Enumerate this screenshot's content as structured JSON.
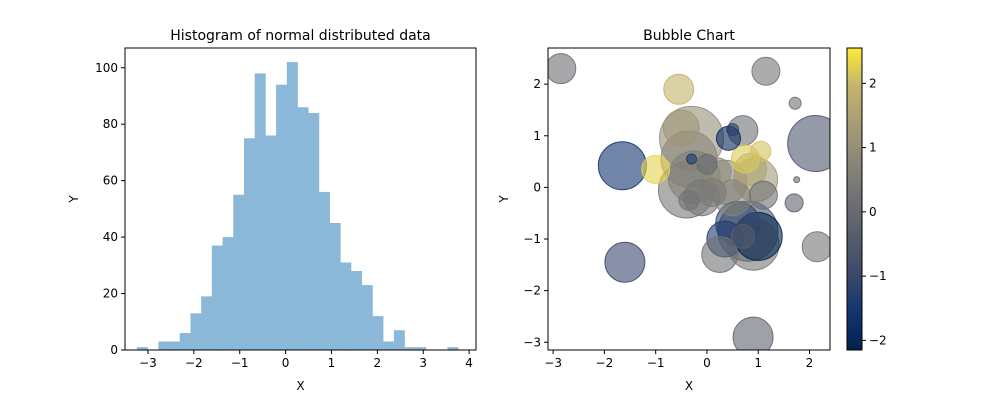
{
  "chart_data": [
    {
      "type": "histogram",
      "title": "Histogram of normal distributed data",
      "xlabel": "X",
      "ylabel": "Y",
      "xlim": [
        -3.5,
        4.15
      ],
      "ylim": [
        0,
        107
      ],
      "xticks": [
        -3,
        -2,
        -1,
        0,
        1,
        2,
        3,
        4
      ],
      "yticks": [
        0,
        20,
        40,
        60,
        80,
        100
      ],
      "bar_color": "#8bb8d8",
      "bin_width": 0.2333,
      "bins": [
        {
          "x0": -3.24,
          "value": 1
        },
        {
          "x0": -3.007,
          "value": 0
        },
        {
          "x0": -2.773,
          "value": 3
        },
        {
          "x0": -2.54,
          "value": 3
        },
        {
          "x0": -2.307,
          "value": 6
        },
        {
          "x0": -2.073,
          "value": 13
        },
        {
          "x0": -1.84,
          "value": 19
        },
        {
          "x0": -1.607,
          "value": 37
        },
        {
          "x0": -1.373,
          "value": 40
        },
        {
          "x0": -1.14,
          "value": 55
        },
        {
          "x0": -0.907,
          "value": 75
        },
        {
          "x0": -0.673,
          "value": 98
        },
        {
          "x0": -0.44,
          "value": 76
        },
        {
          "x0": -0.207,
          "value": 94
        },
        {
          "x0": 0.027,
          "value": 102
        },
        {
          "x0": 0.26,
          "value": 86
        },
        {
          "x0": 0.493,
          "value": 84
        },
        {
          "x0": 0.727,
          "value": 56
        },
        {
          "x0": 0.96,
          "value": 45
        },
        {
          "x0": 1.193,
          "value": 31
        },
        {
          "x0": 1.427,
          "value": 28
        },
        {
          "x0": 1.66,
          "value": 23
        },
        {
          "x0": 1.893,
          "value": 12
        },
        {
          "x0": 2.127,
          "value": 3
        },
        {
          "x0": 2.36,
          "value": 7
        },
        {
          "x0": 2.593,
          "value": 1
        },
        {
          "x0": 2.827,
          "value": 1
        },
        {
          "x0": 3.06,
          "value": 0
        },
        {
          "x0": 3.293,
          "value": 0
        },
        {
          "x0": 3.527,
          "value": 1
        }
      ]
    },
    {
      "type": "scatter",
      "title": "Bubble Chart",
      "xlabel": "X",
      "ylabel": "Y",
      "xlim": [
        -3.1,
        2.4
      ],
      "ylim": [
        -3.15,
        2.7
      ],
      "xticks": [
        -3,
        -2,
        -1,
        0,
        1,
        2
      ],
      "yticks": [
        -3,
        -2,
        -1,
        0,
        1,
        2
      ],
      "colormap": "cividis",
      "colorbar": {
        "min": -2.15,
        "max": 2.55,
        "ticks": [
          -2,
          -1,
          0,
          1,
          2
        ]
      },
      "points": [
        {
          "x": -2.85,
          "y": 2.3,
          "r": 15,
          "c": 0.1
        },
        {
          "x": -0.55,
          "y": 1.9,
          "r": 15,
          "c": 1.9
        },
        {
          "x": 1.15,
          "y": 2.25,
          "r": 14,
          "c": 0.3
        },
        {
          "x": 1.72,
          "y": 1.63,
          "r": 6,
          "c": 0.2
        },
        {
          "x": 2.12,
          "y": 0.85,
          "r": 28,
          "c": -0.6
        },
        {
          "x": -1.65,
          "y": 0.42,
          "r": 24,
          "c": -1.6
        },
        {
          "x": -1.0,
          "y": 0.35,
          "r": 14,
          "c": 2.3
        },
        {
          "x": -0.5,
          "y": 1.15,
          "r": 18,
          "c": 1.2
        },
        {
          "x": -0.3,
          "y": 0.95,
          "r": 32,
          "c": 1.0
        },
        {
          "x": -0.35,
          "y": 0.55,
          "r": 28,
          "c": 0.8
        },
        {
          "x": -0.25,
          "y": 0.2,
          "r": 26,
          "c": 0.6
        },
        {
          "x": -0.4,
          "y": -0.05,
          "r": 28,
          "c": 0.4
        },
        {
          "x": -0.1,
          "y": -0.2,
          "r": 18,
          "c": 0.3
        },
        {
          "x": -0.35,
          "y": -0.25,
          "r": 10,
          "c": 0.2
        },
        {
          "x": -0.3,
          "y": 0.55,
          "r": 5,
          "c": -1.5
        },
        {
          "x": 0.0,
          "y": 0.45,
          "r": 10,
          "c": 0.0
        },
        {
          "x": 0.2,
          "y": 0.3,
          "r": 14,
          "c": 0.9
        },
        {
          "x": 0.35,
          "y": 0.1,
          "r": 22,
          "c": 0.7
        },
        {
          "x": 0.5,
          "y": -0.2,
          "r": 18,
          "c": 0.6
        },
        {
          "x": 0.1,
          "y": -0.1,
          "r": 14,
          "c": 0.5
        },
        {
          "x": 0.7,
          "y": 1.1,
          "r": 15,
          "c": 0.2
        },
        {
          "x": 0.42,
          "y": 0.95,
          "r": 12,
          "c": -1.9
        },
        {
          "x": 0.5,
          "y": 1.12,
          "r": 6,
          "c": -1.2
        },
        {
          "x": 0.75,
          "y": 0.55,
          "r": 14,
          "c": 2.2
        },
        {
          "x": 1.05,
          "y": 0.7,
          "r": 10,
          "c": 2.1
        },
        {
          "x": 0.85,
          "y": 0.35,
          "r": 16,
          "c": 1.5
        },
        {
          "x": 0.95,
          "y": 0.15,
          "r": 22,
          "c": 1.3
        },
        {
          "x": 1.1,
          "y": -0.15,
          "r": 14,
          "c": 0.1
        },
        {
          "x": 1.7,
          "y": -0.3,
          "r": 9,
          "c": -0.2
        },
        {
          "x": 1.75,
          "y": 0.15,
          "r": 3,
          "c": 0.0
        },
        {
          "x": 0.35,
          "y": -1.0,
          "r": 18,
          "c": -1.4
        },
        {
          "x": 0.6,
          "y": -0.7,
          "r": 22,
          "c": -1.1
        },
        {
          "x": 0.8,
          "y": -0.85,
          "r": 30,
          "c": -0.6
        },
        {
          "x": 0.9,
          "y": -1.1,
          "r": 26,
          "c": 0.4
        },
        {
          "x": 1.0,
          "y": -0.95,
          "r": 24,
          "c": -2.1
        },
        {
          "x": 0.7,
          "y": -0.95,
          "r": 12,
          "c": -0.4
        },
        {
          "x": 0.25,
          "y": -1.3,
          "r": 18,
          "c": 0.2
        },
        {
          "x": 2.15,
          "y": -1.15,
          "r": 15,
          "c": 0.3
        },
        {
          "x": -1.6,
          "y": -1.45,
          "r": 20,
          "c": -1.0
        },
        {
          "x": 0.9,
          "y": -2.9,
          "r": 20,
          "c": -0.2
        }
      ]
    }
  ]
}
